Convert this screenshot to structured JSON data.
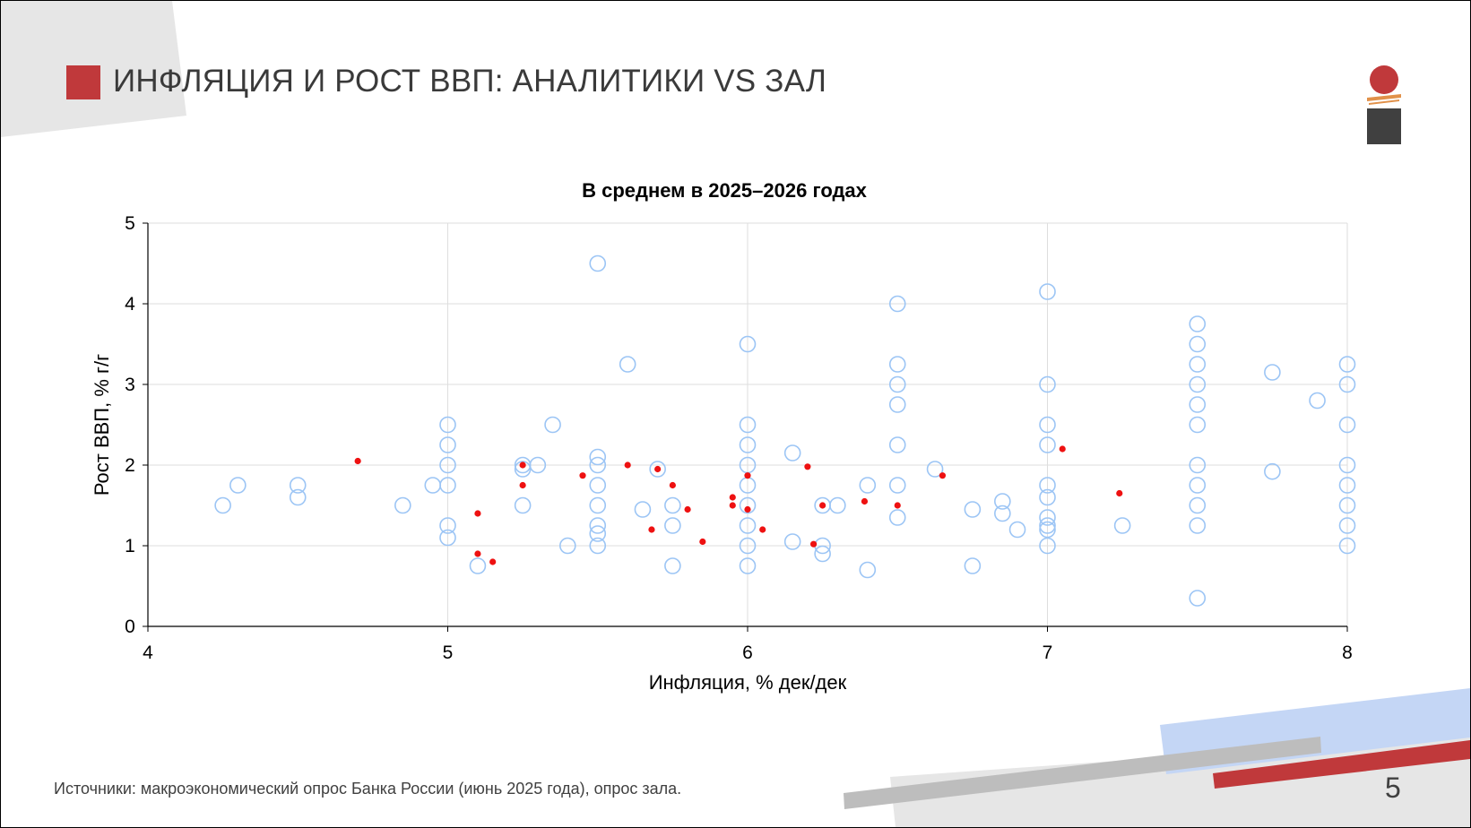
{
  "slide": {
    "title": "ИНФЛЯЦИЯ И РОСТ ВВП: АНАЛИТИКИ VS ЗАЛ",
    "source": "Источники: макроэкономический опрос Банка России (июнь 2025 года), опрос зала.",
    "page_number": "5"
  },
  "colors": {
    "accent_red": "#c0393b",
    "analysts_circle": "#9cc5f5",
    "audience_dot": "#ee1111",
    "deco_gray": "#e6e6e6",
    "deco_blue": "#c4d6f5"
  },
  "chart_data": {
    "type": "scatter",
    "title": "В среднем в 2025–2026 годах",
    "xlabel": "Инфляция, % дек/дек",
    "ylabel": "Рост ВВП, % г/г",
    "xlim": [
      4,
      8
    ],
    "ylim": [
      0,
      5
    ],
    "xticks": [
      "4",
      "5",
      "6",
      "7",
      "8"
    ],
    "yticks": [
      "0",
      "1",
      "2",
      "3",
      "4",
      "5"
    ],
    "grid": true,
    "legend": "none",
    "series": [
      {
        "marker": "open-circle",
        "color": "#9cc5f5",
        "points": [
          [
            4.25,
            1.5
          ],
          [
            4.3,
            1.75
          ],
          [
            4.5,
            1.75
          ],
          [
            4.5,
            1.6
          ],
          [
            4.85,
            1.5
          ],
          [
            4.95,
            1.75
          ],
          [
            5.0,
            2.5
          ],
          [
            5.0,
            2.25
          ],
          [
            5.0,
            2.0
          ],
          [
            5.0,
            1.75
          ],
          [
            5.0,
            1.25
          ],
          [
            5.0,
            1.1
          ],
          [
            5.1,
            0.75
          ],
          [
            5.25,
            2.0
          ],
          [
            5.25,
            1.95
          ],
          [
            5.25,
            1.5
          ],
          [
            5.3,
            2.0
          ],
          [
            5.35,
            2.5
          ],
          [
            5.4,
            1.0
          ],
          [
            5.5,
            4.5
          ],
          [
            5.5,
            2.1
          ],
          [
            5.5,
            2.0
          ],
          [
            5.5,
            1.75
          ],
          [
            5.5,
            1.5
          ],
          [
            5.5,
            1.25
          ],
          [
            5.5,
            1.15
          ],
          [
            5.5,
            1.0
          ],
          [
            5.6,
            3.25
          ],
          [
            5.65,
            1.45
          ],
          [
            5.7,
            1.95
          ],
          [
            5.75,
            1.5
          ],
          [
            5.75,
            1.25
          ],
          [
            5.75,
            0.75
          ],
          [
            6.0,
            3.5
          ],
          [
            6.0,
            2.5
          ],
          [
            6.0,
            2.25
          ],
          [
            6.0,
            2.0
          ],
          [
            6.0,
            1.75
          ],
          [
            6.0,
            1.5
          ],
          [
            6.0,
            1.25
          ],
          [
            6.0,
            1.0
          ],
          [
            6.0,
            0.75
          ],
          [
            6.15,
            2.15
          ],
          [
            6.15,
            1.05
          ],
          [
            6.25,
            1.5
          ],
          [
            6.25,
            1.0
          ],
          [
            6.25,
            0.9
          ],
          [
            6.3,
            1.5
          ],
          [
            6.4,
            1.75
          ],
          [
            6.4,
            0.7
          ],
          [
            6.5,
            4.0
          ],
          [
            6.5,
            3.25
          ],
          [
            6.5,
            3.0
          ],
          [
            6.5,
            2.75
          ],
          [
            6.5,
            2.25
          ],
          [
            6.5,
            1.75
          ],
          [
            6.5,
            1.35
          ],
          [
            6.625,
            1.95
          ],
          [
            6.75,
            1.45
          ],
          [
            6.75,
            0.75
          ],
          [
            6.85,
            1.55
          ],
          [
            6.85,
            1.4
          ],
          [
            6.9,
            1.2
          ],
          [
            7.0,
            4.15
          ],
          [
            7.0,
            3.0
          ],
          [
            7.0,
            2.5
          ],
          [
            7.0,
            2.25
          ],
          [
            7.0,
            1.75
          ],
          [
            7.0,
            1.6
          ],
          [
            7.0,
            1.35
          ],
          [
            7.0,
            1.25
          ],
          [
            7.0,
            1.2
          ],
          [
            7.0,
            1.0
          ],
          [
            7.25,
            1.25
          ],
          [
            7.5,
            3.75
          ],
          [
            7.5,
            3.5
          ],
          [
            7.5,
            3.25
          ],
          [
            7.5,
            3.0
          ],
          [
            7.5,
            2.75
          ],
          [
            7.5,
            2.5
          ],
          [
            7.5,
            2.0
          ],
          [
            7.5,
            1.75
          ],
          [
            7.5,
            1.5
          ],
          [
            7.5,
            1.25
          ],
          [
            7.5,
            0.35
          ],
          [
            7.75,
            3.15
          ],
          [
            7.75,
            1.92
          ],
          [
            7.9,
            2.8
          ],
          [
            8.0,
            3.25
          ],
          [
            8.0,
            3.0
          ],
          [
            8.0,
            2.5
          ],
          [
            8.0,
            2.0
          ],
          [
            8.0,
            1.75
          ],
          [
            8.0,
            1.5
          ],
          [
            8.0,
            1.25
          ],
          [
            8.0,
            1.0
          ]
        ]
      },
      {
        "marker": "filled-dot",
        "color": "#ee1111",
        "points": [
          [
            4.7,
            2.05
          ],
          [
            5.1,
            1.4
          ],
          [
            5.1,
            0.9
          ],
          [
            5.15,
            0.8
          ],
          [
            5.25,
            2.0
          ],
          [
            5.25,
            1.75
          ],
          [
            5.45,
            1.87
          ],
          [
            5.6,
            2.0
          ],
          [
            5.68,
            1.2
          ],
          [
            5.7,
            1.95
          ],
          [
            5.75,
            1.75
          ],
          [
            5.8,
            1.45
          ],
          [
            5.85,
            1.05
          ],
          [
            5.95,
            1.6
          ],
          [
            5.95,
            1.5
          ],
          [
            6.0,
            1.87
          ],
          [
            6.0,
            1.45
          ],
          [
            6.05,
            1.2
          ],
          [
            6.2,
            1.98
          ],
          [
            6.22,
            1.02
          ],
          [
            6.25,
            1.5
          ],
          [
            6.39,
            1.55
          ],
          [
            6.5,
            1.5
          ],
          [
            6.65,
            1.87
          ],
          [
            7.05,
            2.2
          ],
          [
            7.24,
            1.65
          ]
        ]
      }
    ]
  }
}
